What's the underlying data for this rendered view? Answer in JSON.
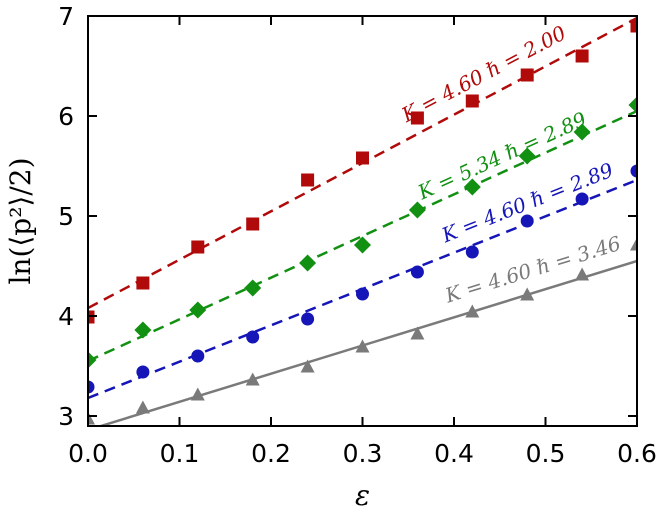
{
  "chart_data": {
    "type": "scatter",
    "xlabel": "ε",
    "ylabel": "ln(⟨p²⟩/2)",
    "xlim": [
      0.0,
      0.6
    ],
    "ylim": [
      2.9,
      7.0
    ],
    "xticks": [
      "0.0",
      "0.1",
      "0.2",
      "0.3",
      "0.4",
      "0.5",
      "0.6"
    ],
    "yticks": [
      "3",
      "4",
      "5",
      "6",
      "7"
    ],
    "grid": false,
    "series": [
      {
        "label": "K = 4.60 ℏ = 2.00",
        "color": "#b00a0a",
        "marker": "square",
        "line_style": "dashed",
        "fit": [
          4.08,
          6.98
        ],
        "x": [
          0.0,
          0.06,
          0.12,
          0.18,
          0.24,
          0.3,
          0.36,
          0.42,
          0.48,
          0.54,
          0.6
        ],
        "y": [
          3.99,
          4.33,
          4.69,
          4.92,
          5.36,
          5.58,
          5.98,
          6.15,
          6.41,
          6.6,
          6.9
        ]
      },
      {
        "label": "K = 5.34 ℏ = 2.89",
        "color": "#119011",
        "marker": "diamond",
        "line_style": "dashed",
        "fit": [
          3.55,
          6.05
        ],
        "x": [
          0.0,
          0.06,
          0.12,
          0.18,
          0.24,
          0.3,
          0.36,
          0.42,
          0.48,
          0.54,
          0.6
        ],
        "y": [
          3.56,
          3.86,
          4.06,
          4.28,
          4.53,
          4.71,
          5.06,
          5.29,
          5.6,
          5.84,
          6.11
        ]
      },
      {
        "label": "K = 4.60 ℏ = 2.89",
        "color": "#1515b8",
        "marker": "circle",
        "line_style": "dashed",
        "fit": [
          3.18,
          5.36
        ],
        "x": [
          0.0,
          0.06,
          0.12,
          0.18,
          0.24,
          0.3,
          0.36,
          0.42,
          0.48,
          0.54,
          0.6
        ],
        "y": [
          3.29,
          3.44,
          3.6,
          3.79,
          3.97,
          4.22,
          4.44,
          4.64,
          4.95,
          5.17,
          5.45
        ]
      },
      {
        "label": "K = 4.60 ℏ = 3.46",
        "color": "#7a7a7a",
        "marker": "triangle",
        "line_style": "solid",
        "fit": [
          2.86,
          4.55
        ],
        "x": [
          0.0,
          0.06,
          0.12,
          0.18,
          0.24,
          0.3,
          0.36,
          0.42,
          0.48,
          0.54,
          0.6
        ],
        "y": [
          2.97,
          3.08,
          3.21,
          3.36,
          3.49,
          3.69,
          3.82,
          4.04,
          4.21,
          4.41,
          4.71
        ]
      }
    ]
  }
}
